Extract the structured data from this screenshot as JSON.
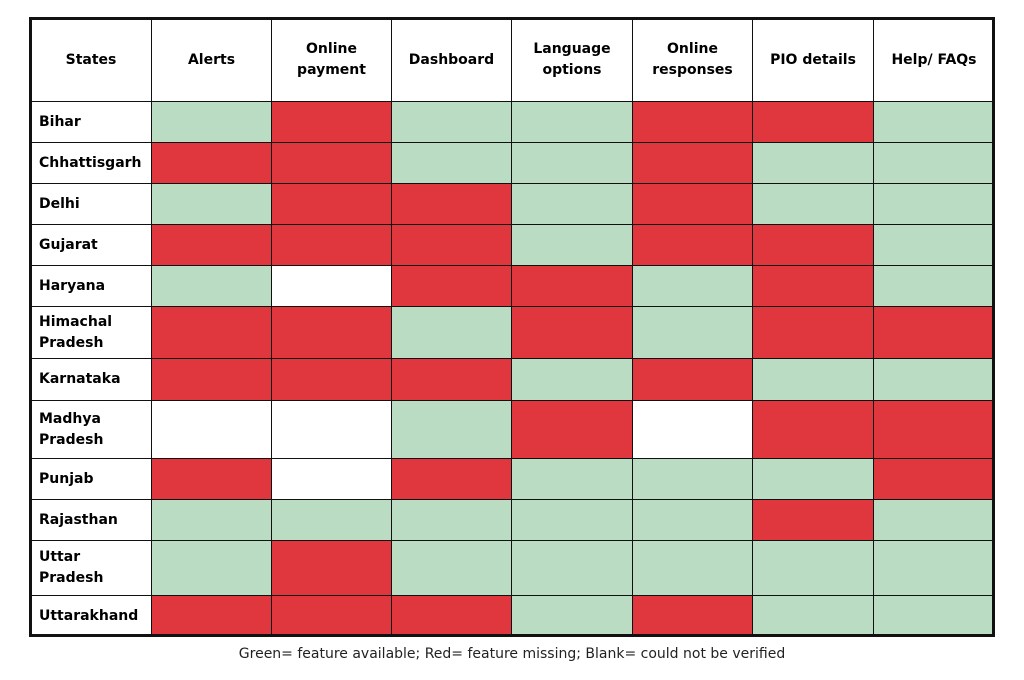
{
  "table": {
    "header": [
      "States",
      "Alerts",
      "Online payment",
      "Dashboard",
      "Language options",
      "Online responses",
      "PIO details",
      "Help/ FAQs"
    ],
    "rows": [
      {
        "state": "Bihar",
        "cells": [
          "#b9dcc2",
          "#e0363d",
          "#b9dcc2",
          "#b9dcc2",
          "#e0363d",
          "#e0363d",
          "#b9dcc2"
        ]
      },
      {
        "state": "Chhattisgarh",
        "cells": [
          "#e0363d",
          "#e0363d",
          "#b9dcc2",
          "#b9dcc2",
          "#e0363d",
          "#b9dcc2",
          "#b9dcc2"
        ]
      },
      {
        "state": "Delhi",
        "cells": [
          "#b9dcc2",
          "#e0363d",
          "#e0363d",
          "#b9dcc2",
          "#e0363d",
          "#b9dcc2",
          "#b9dcc2"
        ]
      },
      {
        "state": "Gujarat",
        "cells": [
          "#e0363d",
          "#e0363d",
          "#e0363d",
          "#b9dcc2",
          "#e0363d",
          "#e0363d",
          "#b9dcc2"
        ]
      },
      {
        "state": "Haryana",
        "cells": [
          "#b9dcc2",
          "#ffffff",
          "#e0363d",
          "#e0363d",
          "#b9dcc2",
          "#e0363d",
          "#b9dcc2"
        ]
      },
      {
        "state": "Himachal Pradesh",
        "cells": [
          "#e0363d",
          "#e0363d",
          "#b9dcc2",
          "#e0363d",
          "#b9dcc2",
          "#e0363d",
          "#e0363d"
        ]
      },
      {
        "state": "Karnataka",
        "cells": [
          "#e0363d",
          "#e0363d",
          "#e0363d",
          "#b9dcc2",
          "#e0363d",
          "#b9dcc2",
          "#b9dcc2"
        ]
      },
      {
        "state": "Madhya Pradesh",
        "cells": [
          "#ffffff",
          "#ffffff",
          "#b9dcc2",
          "#e0363d",
          "#ffffff",
          "#e0363d",
          "#e0363d"
        ]
      },
      {
        "state": "Punjab",
        "cells": [
          "#e0363d",
          "#ffffff",
          "#e0363d",
          "#b9dcc2",
          "#b9dcc2",
          "#b9dcc2",
          "#e0363d"
        ]
      },
      {
        "state": "Rajasthan",
        "cells": [
          "#b9dcc2",
          "#b9dcc2",
          "#b9dcc2",
          "#b9dcc2",
          "#b9dcc2",
          "#e0363d",
          "#b9dcc2"
        ]
      },
      {
        "state": "Uttar Pradesh",
        "cells": [
          "#b9dcc2",
          "#e0363d",
          "#b9dcc2",
          "#b9dcc2",
          "#b9dcc2",
          "#b9dcc2",
          "#b9dcc2"
        ]
      },
      {
        "state": "Uttarakhand",
        "cells": [
          "#e0363d",
          "#e0363d",
          "#e0363d",
          "#b9dcc2",
          "#e0363d",
          "#b9dcc2",
          "#b9dcc2"
        ]
      }
    ],
    "caption": "Green= feature available; Red= feature missing; Blank= could not be verified"
  }
}
